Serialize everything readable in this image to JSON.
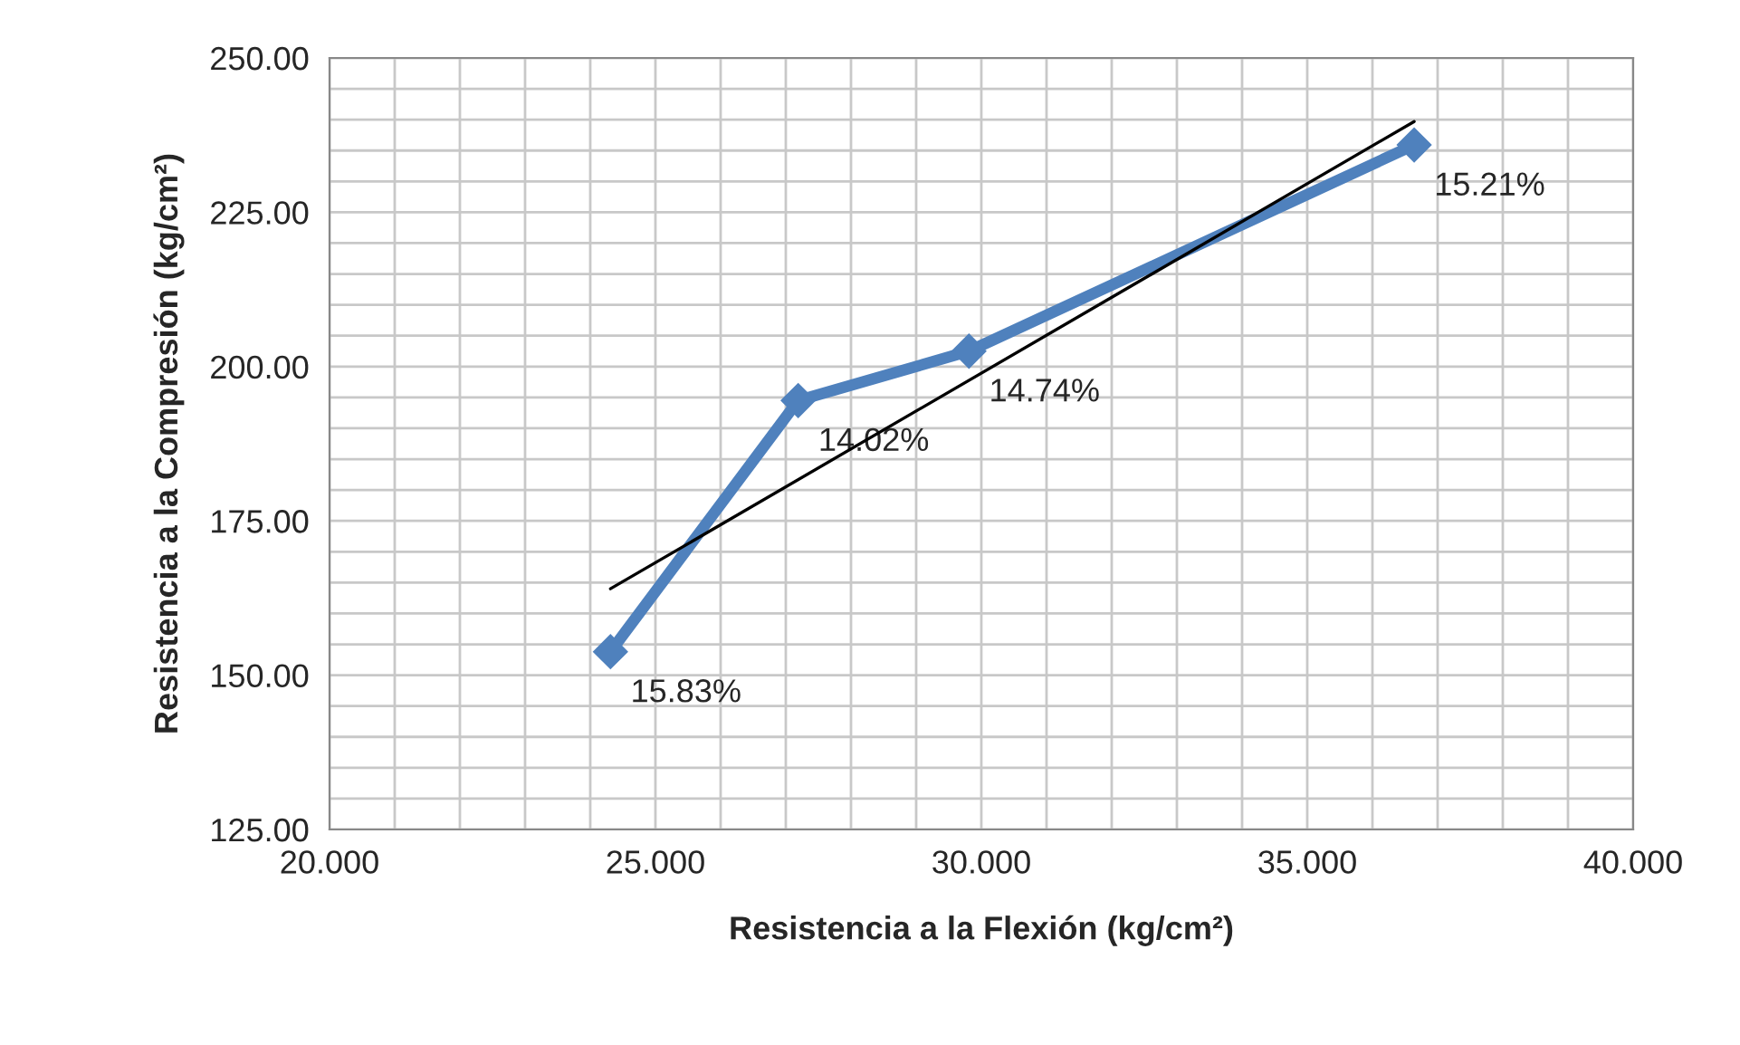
{
  "chart_data": {
    "type": "line",
    "xlabel": "Resistencia a la Flexión (kg/cm²)",
    "ylabel": "Resistencia a la Compresión (kg/cm²)",
    "series": [
      {
        "color": "#4f81bd",
        "x": [
          24.31,
          27.19,
          29.81,
          36.64
        ],
        "values": [
          153.8,
          194.5,
          202.5,
          235.9
        ],
        "marker": "diamond"
      },
      {
        "type": "line",
        "color": "#000000",
        "x": [
          24.31,
          36.64
        ],
        "values": [
          164.0,
          239.7
        ],
        "marker": "none"
      }
    ],
    "annotations": [
      {
        "text": "15.83%",
        "x": 24.31,
        "y": 153.8
      },
      {
        "text": "14.02%",
        "x": 27.19,
        "y": 194.5
      },
      {
        "text": "14.74%",
        "x": 29.81,
        "y": 202.5
      },
      {
        "text": "15.21%",
        "x": 36.64,
        "y": 235.9
      }
    ],
    "xlim": [
      20,
      40
    ],
    "xticks": [
      {
        "value": 20,
        "label": "20.000"
      },
      {
        "value": 21,
        "label": null
      },
      {
        "value": 22,
        "label": null
      },
      {
        "value": 23,
        "label": null
      },
      {
        "value": 24,
        "label": null
      },
      {
        "value": 25,
        "label": "25.000"
      },
      {
        "value": 26,
        "label": null
      },
      {
        "value": 27,
        "label": null
      },
      {
        "value": 28,
        "label": null
      },
      {
        "value": 29,
        "label": null
      },
      {
        "value": 30,
        "label": "30.000"
      },
      {
        "value": 31,
        "label": null
      },
      {
        "value": 32,
        "label": null
      },
      {
        "value": 33,
        "label": null
      },
      {
        "value": 34,
        "label": null
      },
      {
        "value": 35,
        "label": "35.000"
      },
      {
        "value": 36,
        "label": null
      },
      {
        "value": 37,
        "label": null
      },
      {
        "value": 38,
        "label": null
      },
      {
        "value": 39,
        "label": null
      },
      {
        "value": 40,
        "label": "40.000"
      }
    ],
    "ylim": [
      125,
      250
    ],
    "yticks": [
      {
        "value": 125,
        "label": "125.00"
      },
      {
        "value": 130,
        "label": null
      },
      {
        "value": 135,
        "label": null
      },
      {
        "value": 140,
        "label": null
      },
      {
        "value": 145,
        "label": null
      },
      {
        "value": 150,
        "label": "150.00"
      },
      {
        "value": 155,
        "label": null
      },
      {
        "value": 160,
        "label": null
      },
      {
        "value": 165,
        "label": null
      },
      {
        "value": 170,
        "label": null
      },
      {
        "value": 175,
        "label": "175.00"
      },
      {
        "value": 180,
        "label": null
      },
      {
        "value": 185,
        "label": null
      },
      {
        "value": 190,
        "label": null
      },
      {
        "value": 195,
        "label": null
      },
      {
        "value": 200,
        "label": "200.00"
      },
      {
        "value": 205,
        "label": null
      },
      {
        "value": 210,
        "label": null
      },
      {
        "value": 215,
        "label": null
      },
      {
        "value": 220,
        "label": null
      },
      {
        "value": 225,
        "label": "225.00"
      },
      {
        "value": 230,
        "label": null
      },
      {
        "value": 235,
        "label": null
      },
      {
        "value": 240,
        "label": null
      },
      {
        "value": 245,
        "label": null
      },
      {
        "value": 250,
        "label": "250.00"
      }
    ],
    "grid": true,
    "line_style": "solid"
  }
}
